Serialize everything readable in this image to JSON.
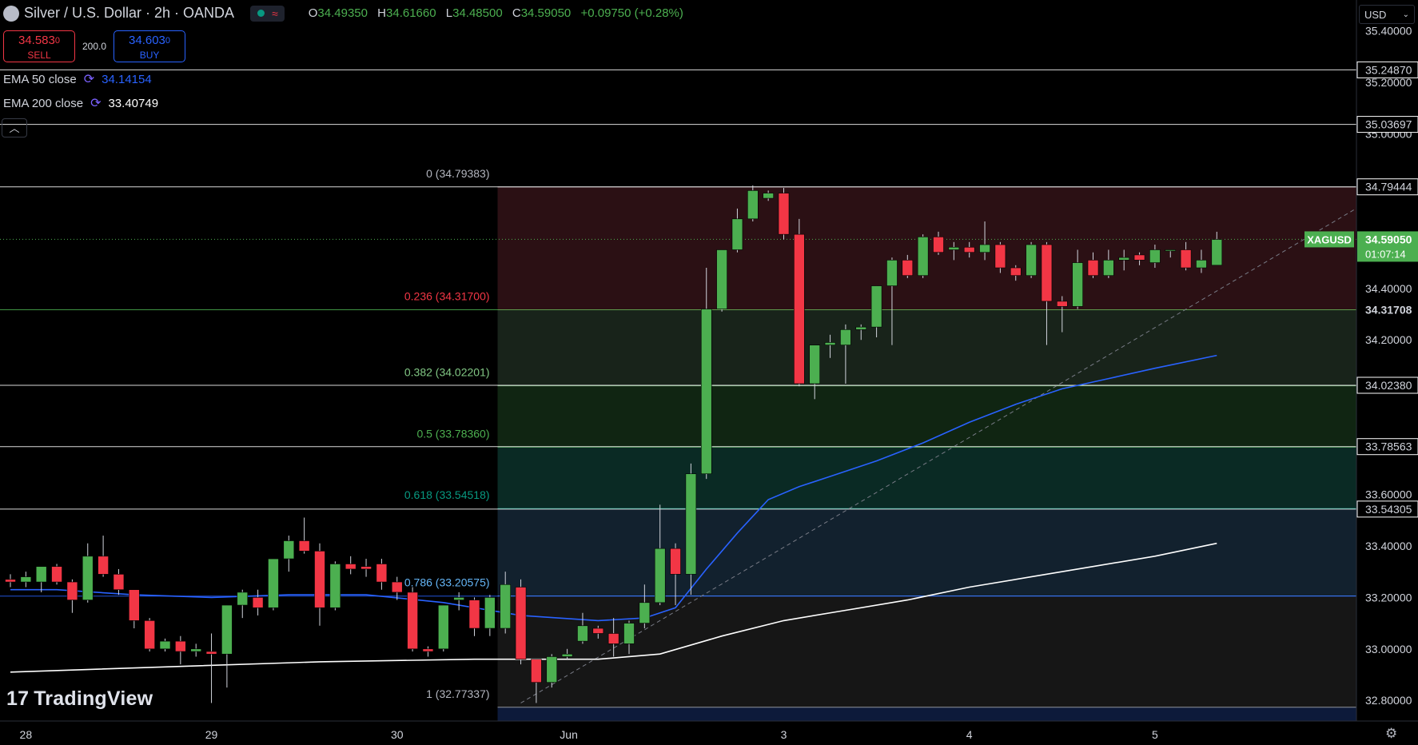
{
  "header": {
    "symbol": "Silver / U.S. Dollar · 2h · OANDA",
    "open_label": "O",
    "open": "34.49350",
    "high_label": "H",
    "high": "34.61660",
    "low_label": "L",
    "low": "34.48500",
    "close_label": "C",
    "close": "34.59050",
    "change": "+0.09750 (+0.28%)"
  },
  "trade": {
    "sell_price": "34.583",
    "sell_price_sup": "0",
    "sell_label": "SELL",
    "spread": "200.0",
    "buy_price": "34.603",
    "buy_price_sup": "0",
    "buy_label": "BUY"
  },
  "indicators": [
    {
      "name": "EMA 50 close",
      "value": "34.14154",
      "color": "#2962ff"
    },
    {
      "name": "EMA 200 close",
      "value": "33.40749",
      "color": "#ffffff"
    }
  ],
  "collapse_icon": "chevron-up-icon",
  "watermark": "TradingView",
  "currency": "USD",
  "settings_icon": "gear-icon",
  "chart_data": {
    "type": "candlestick",
    "instrument": "XAGUSD",
    "timeframe": "2h",
    "y_range": [
      32.72,
      35.52
    ],
    "colors": {
      "up": "#4caf50",
      "down": "#f23645",
      "ema50": "#2962ff",
      "ema200": "#ffffff"
    },
    "x_tick_labels": [
      {
        "label": "28",
        "index": 1
      },
      {
        "label": "29",
        "index": 13
      },
      {
        "label": "30",
        "index": 25
      },
      {
        "label": "Jun",
        "index": 36
      },
      {
        "label": "3",
        "index": 50
      },
      {
        "label": "4",
        "index": 62
      },
      {
        "label": "5",
        "index": 74
      }
    ],
    "y_tick_labels": [
      "35.40000",
      "35.20000",
      "35.00000",
      "34.40000",
      "34.20000",
      "33.60000",
      "33.40000",
      "33.20000",
      "33.00000",
      "32.80000"
    ],
    "y_ticks": [
      35.4,
      35.2,
      35.0,
      34.4,
      34.2,
      33.6,
      33.4,
      33.2,
      33.0,
      32.8
    ],
    "last_price": {
      "symbol": "XAGUSD",
      "value": "34.59050",
      "countdown": "01:07:14",
      "price": 34.5905
    },
    "fibonacci": [
      {
        "label": "0 (34.79383)",
        "price": 34.79383,
        "color": "#b2b5be"
      },
      {
        "label": "0.236 (34.31700)",
        "price": 34.317,
        "color": "#f23645"
      },
      {
        "label": "0.382 (34.02201)",
        "price": 34.02201,
        "color": "#81c784"
      },
      {
        "label": "0.5 (33.78360)",
        "price": 33.7836,
        "color": "#4caf50"
      },
      {
        "label": "0.618 (33.54518)",
        "price": 33.54518,
        "color": "#089981"
      },
      {
        "label": "0.786 (33.20575)",
        "price": 33.20575,
        "color": "#64b5f6"
      },
      {
        "label": "1 (32.77337)",
        "price": 32.77337,
        "color": "#b2b5be"
      }
    ],
    "horizontal_levels": [
      {
        "label": "35.24870",
        "price": 35.2487,
        "color": "#ffffff"
      },
      {
        "label": "35.03697",
        "price": 35.03697,
        "color": "#ffffff"
      },
      {
        "label": "34.79444",
        "price": 34.79444,
        "color": "#ffffff"
      },
      {
        "label": "34.31708",
        "price": 34.31708,
        "color": "#4caf50"
      },
      {
        "label": "34.02380",
        "price": 34.0238,
        "color": "#ffffff"
      },
      {
        "label": "33.78563",
        "price": 33.78563,
        "color": "#ffffff"
      },
      {
        "label": "33.54305",
        "price": 33.54305,
        "color": "#ffffff"
      },
      {
        "label": "",
        "price": 33.205,
        "color": "#2962ff"
      }
    ],
    "candles": [
      {
        "o": 33.27,
        "h": 33.29,
        "l": 33.24,
        "c": 33.26
      },
      {
        "o": 33.26,
        "h": 33.3,
        "l": 33.24,
        "c": 33.28
      },
      {
        "o": 33.26,
        "h": 33.32,
        "l": 33.22,
        "c": 33.32
      },
      {
        "o": 33.32,
        "h": 33.33,
        "l": 33.25,
        "c": 33.26
      },
      {
        "o": 33.26,
        "h": 33.27,
        "l": 33.14,
        "c": 33.19
      },
      {
        "o": 33.19,
        "h": 33.41,
        "l": 33.18,
        "c": 33.36
      },
      {
        "o": 33.36,
        "h": 33.44,
        "l": 33.28,
        "c": 33.29
      },
      {
        "o": 33.29,
        "h": 33.31,
        "l": 33.21,
        "c": 33.23
      },
      {
        "o": 33.23,
        "h": 33.23,
        "l": 33.08,
        "c": 33.11
      },
      {
        "o": 33.11,
        "h": 33.12,
        "l": 32.99,
        "c": 33.0
      },
      {
        "o": 33.0,
        "h": 33.04,
        "l": 32.99,
        "c": 33.03
      },
      {
        "o": 33.03,
        "h": 33.05,
        "l": 32.94,
        "c": 32.99
      },
      {
        "o": 32.99,
        "h": 33.02,
        "l": 32.97,
        "c": 33.0
      },
      {
        "o": 32.99,
        "h": 33.06,
        "l": 32.79,
        "c": 32.98
      },
      {
        "o": 32.98,
        "h": 33.17,
        "l": 32.85,
        "c": 33.17
      },
      {
        "o": 33.17,
        "h": 33.23,
        "l": 33.12,
        "c": 33.22
      },
      {
        "o": 33.2,
        "h": 33.23,
        "l": 33.13,
        "c": 33.16
      },
      {
        "o": 33.16,
        "h": 33.35,
        "l": 33.15,
        "c": 33.35
      },
      {
        "o": 33.35,
        "h": 33.44,
        "l": 33.3,
        "c": 33.42
      },
      {
        "o": 33.42,
        "h": 33.51,
        "l": 33.37,
        "c": 33.38
      },
      {
        "o": 33.38,
        "h": 33.41,
        "l": 33.09,
        "c": 33.16
      },
      {
        "o": 33.16,
        "h": 33.34,
        "l": 33.15,
        "c": 33.33
      },
      {
        "o": 33.33,
        "h": 33.36,
        "l": 33.29,
        "c": 33.31
      },
      {
        "o": 33.32,
        "h": 33.35,
        "l": 33.28,
        "c": 33.31
      },
      {
        "o": 33.33,
        "h": 33.35,
        "l": 33.23,
        "c": 33.26
      },
      {
        "o": 33.26,
        "h": 33.28,
        "l": 33.19,
        "c": 33.22
      },
      {
        "o": 33.22,
        "h": 33.24,
        "l": 32.99,
        "c": 33.0
      },
      {
        "o": 33.0,
        "h": 33.01,
        "l": 32.97,
        "c": 32.99
      },
      {
        "o": 33.0,
        "h": 33.17,
        "l": 32.99,
        "c": 33.17
      },
      {
        "o": 33.19,
        "h": 33.22,
        "l": 33.15,
        "c": 33.2
      },
      {
        "o": 33.19,
        "h": 33.2,
        "l": 33.05,
        "c": 33.08
      },
      {
        "o": 33.08,
        "h": 33.21,
        "l": 33.05,
        "c": 33.2
      },
      {
        "o": 33.08,
        "h": 33.3,
        "l": 33.06,
        "c": 33.25
      },
      {
        "o": 33.24,
        "h": 33.27,
        "l": 32.94,
        "c": 32.96
      },
      {
        "o": 32.96,
        "h": 32.96,
        "l": 32.79,
        "c": 32.87
      },
      {
        "o": 32.87,
        "h": 32.98,
        "l": 32.85,
        "c": 32.97
      },
      {
        "o": 32.97,
        "h": 33.0,
        "l": 32.96,
        "c": 32.98
      },
      {
        "o": 33.03,
        "h": 33.14,
        "l": 33.02,
        "c": 33.09
      },
      {
        "o": 33.08,
        "h": 33.09,
        "l": 33.04,
        "c": 33.06
      },
      {
        "o": 33.06,
        "h": 33.12,
        "l": 32.97,
        "c": 33.02
      },
      {
        "o": 33.02,
        "h": 33.11,
        "l": 32.98,
        "c": 33.1
      },
      {
        "o": 33.1,
        "h": 33.25,
        "l": 33.08,
        "c": 33.18
      },
      {
        "o": 33.18,
        "h": 33.56,
        "l": 33.17,
        "c": 33.39
      },
      {
        "o": 33.39,
        "h": 33.41,
        "l": 33.17,
        "c": 33.29
      },
      {
        "o": 33.29,
        "h": 33.72,
        "l": 33.21,
        "c": 33.68
      },
      {
        "o": 33.68,
        "h": 34.48,
        "l": 33.66,
        "c": 34.32
      },
      {
        "o": 34.32,
        "h": 34.55,
        "l": 34.31,
        "c": 34.55
      },
      {
        "o": 34.55,
        "h": 34.71,
        "l": 34.54,
        "c": 34.67
      },
      {
        "o": 34.67,
        "h": 34.8,
        "l": 34.66,
        "c": 34.78
      },
      {
        "o": 34.75,
        "h": 34.78,
        "l": 34.74,
        "c": 34.77
      },
      {
        "o": 34.77,
        "h": 34.79,
        "l": 34.59,
        "c": 34.61
      },
      {
        "o": 34.61,
        "h": 34.67,
        "l": 34.02,
        "c": 34.03
      },
      {
        "o": 34.03,
        "h": 34.18,
        "l": 33.97,
        "c": 34.18
      },
      {
        "o": 34.18,
        "h": 34.22,
        "l": 34.13,
        "c": 34.19
      },
      {
        "o": 34.18,
        "h": 34.26,
        "l": 34.03,
        "c": 34.24
      },
      {
        "o": 34.24,
        "h": 34.26,
        "l": 34.2,
        "c": 34.25
      },
      {
        "o": 34.25,
        "h": 34.41,
        "l": 34.21,
        "c": 34.41
      },
      {
        "o": 34.41,
        "h": 34.52,
        "l": 34.18,
        "c": 34.51
      },
      {
        "o": 34.51,
        "h": 34.53,
        "l": 34.44,
        "c": 34.45
      },
      {
        "o": 34.45,
        "h": 34.61,
        "l": 34.44,
        "c": 34.6
      },
      {
        "o": 34.6,
        "h": 34.62,
        "l": 34.53,
        "c": 34.54
      },
      {
        "o": 34.55,
        "h": 34.58,
        "l": 34.51,
        "c": 34.56
      },
      {
        "o": 34.56,
        "h": 34.58,
        "l": 34.52,
        "c": 34.54
      },
      {
        "o": 34.54,
        "h": 34.66,
        "l": 34.51,
        "c": 34.57
      },
      {
        "o": 34.57,
        "h": 34.58,
        "l": 34.46,
        "c": 34.48
      },
      {
        "o": 34.48,
        "h": 34.49,
        "l": 34.43,
        "c": 34.45
      },
      {
        "o": 34.45,
        "h": 34.58,
        "l": 34.44,
        "c": 34.57
      },
      {
        "o": 34.57,
        "h": 34.58,
        "l": 34.18,
        "c": 34.35
      },
      {
        "o": 34.35,
        "h": 34.37,
        "l": 34.23,
        "c": 34.33
      },
      {
        "o": 34.33,
        "h": 34.55,
        "l": 34.32,
        "c": 34.5
      },
      {
        "o": 34.51,
        "h": 34.54,
        "l": 34.44,
        "c": 34.45
      },
      {
        "o": 34.45,
        "h": 34.55,
        "l": 34.44,
        "c": 34.51
      },
      {
        "o": 34.51,
        "h": 34.55,
        "l": 34.47,
        "c": 34.52
      },
      {
        "o": 34.53,
        "h": 34.54,
        "l": 34.49,
        "c": 34.51
      },
      {
        "o": 34.5,
        "h": 34.57,
        "l": 34.48,
        "c": 34.55
      },
      {
        "o": 34.55,
        "h": 34.55,
        "l": 34.52,
        "c": 34.55
      },
      {
        "o": 34.55,
        "h": 34.58,
        "l": 34.47,
        "c": 34.48
      },
      {
        "o": 34.48,
        "h": 34.55,
        "l": 34.46,
        "c": 34.51
      },
      {
        "o": 34.49,
        "h": 34.62,
        "l": 34.49,
        "c": 34.59
      }
    ],
    "ema50": [
      {
        "i": 0,
        "v": 33.23
      },
      {
        "i": 3,
        "v": 33.23
      },
      {
        "i": 8,
        "v": 33.21
      },
      {
        "i": 13,
        "v": 33.2
      },
      {
        "i": 18,
        "v": 33.21
      },
      {
        "i": 23,
        "v": 33.21
      },
      {
        "i": 28,
        "v": 33.18
      },
      {
        "i": 33,
        "v": 33.13
      },
      {
        "i": 38,
        "v": 33.11
      },
      {
        "i": 41,
        "v": 33.12
      },
      {
        "i": 43,
        "v": 33.16
      },
      {
        "i": 45,
        "v": 33.31
      },
      {
        "i": 47,
        "v": 33.45
      },
      {
        "i": 49,
        "v": 33.58
      },
      {
        "i": 51,
        "v": 33.63
      },
      {
        "i": 53,
        "v": 33.67
      },
      {
        "i": 56,
        "v": 33.73
      },
      {
        "i": 59,
        "v": 33.8
      },
      {
        "i": 62,
        "v": 33.88
      },
      {
        "i": 65,
        "v": 33.95
      },
      {
        "i": 68,
        "v": 34.01
      },
      {
        "i": 71,
        "v": 34.05
      },
      {
        "i": 74,
        "v": 34.09
      },
      {
        "i": 78,
        "v": 34.14
      }
    ],
    "ema200": [
      {
        "i": 0,
        "v": 32.91
      },
      {
        "i": 10,
        "v": 32.93
      },
      {
        "i": 20,
        "v": 32.95
      },
      {
        "i": 30,
        "v": 32.96
      },
      {
        "i": 38,
        "v": 32.96
      },
      {
        "i": 42,
        "v": 32.98
      },
      {
        "i": 46,
        "v": 33.05
      },
      {
        "i": 50,
        "v": 33.11
      },
      {
        "i": 54,
        "v": 33.15
      },
      {
        "i": 58,
        "v": 33.19
      },
      {
        "i": 62,
        "v": 33.24
      },
      {
        "i": 66,
        "v": 33.28
      },
      {
        "i": 70,
        "v": 33.32
      },
      {
        "i": 74,
        "v": 33.36
      },
      {
        "i": 78,
        "v": 33.41
      }
    ],
    "trendline": {
      "from": {
        "i": 33,
        "v": 32.79
      },
      "to": {
        "i": 87,
        "v": 34.71
      }
    }
  }
}
